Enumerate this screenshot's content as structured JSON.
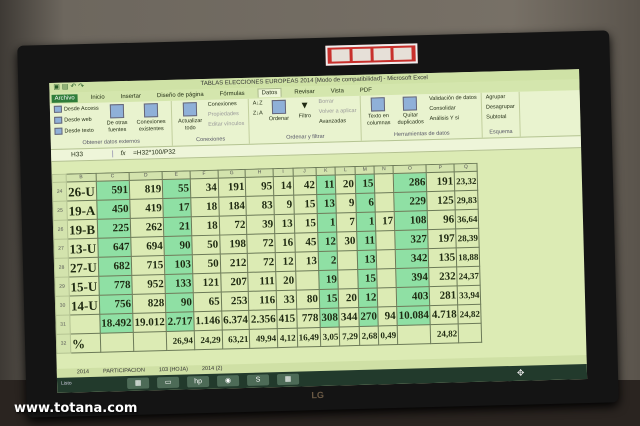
{
  "window": {
    "title": "TABLAS ELECCIONES EUROPEAS 2014  [Modo de compatibilidad] - Microsoft Excel"
  },
  "ribbon": {
    "tabs": [
      "Archivo",
      "Inicio",
      "Insertar",
      "Diseño de página",
      "Fórmulas",
      "Datos",
      "Revisar",
      "Vista",
      "PDF"
    ],
    "active_tab": "Datos",
    "external": {
      "access": "Desde Access",
      "web": "Desde web",
      "text": "Desde texto",
      "other": "De otras fuentes",
      "existing": "Conexiones existentes",
      "label": "Obtener datos externos"
    },
    "connections": {
      "refresh": "Actualizar todo",
      "conn": "Conexiones",
      "props": "Propiedades",
      "edit": "Editar vínculos",
      "label": "Conexiones"
    },
    "sort": {
      "sort": "Ordenar",
      "filter": "Filtro",
      "clear": "Borrar",
      "reapply": "Volver a aplicar",
      "advanced": "Avanzadas",
      "label": "Ordenar y filtrar"
    },
    "tools": {
      "text_cols": "Texto en columnas",
      "remove_dup": "Quitar duplicados",
      "validation": "Validación de datos",
      "consolidate": "Consolidar",
      "whatif": "Análisis Y si",
      "label": "Herramientas de datos"
    },
    "outline": {
      "group": "Agrupar",
      "ungroup": "Desagrupar",
      "subtotal": "Subtotal",
      "label": "Esquema"
    }
  },
  "formula_bar": {
    "name_box": "H33",
    "formula": "=H32*100/P32"
  },
  "sheet": {
    "columns": [
      "B",
      "C",
      "D",
      "E",
      "F",
      "G",
      "H",
      "I",
      "J",
      "K",
      "L",
      "M",
      "N",
      "O",
      "P",
      "Q"
    ],
    "green_columns": [
      "C",
      "E",
      "K",
      "M",
      "O"
    ],
    "rows": [
      {
        "num": "24",
        "cells": [
          "26-U",
          "591",
          "819",
          "55",
          "34",
          "191",
          "95",
          "14",
          "42",
          "11",
          "20",
          "15",
          "",
          "286",
          "191",
          "23,32"
        ]
      },
      {
        "num": "25",
        "cells": [
          "19-A",
          "450",
          "419",
          "17",
          "18",
          "184",
          "83",
          "9",
          "15",
          "13",
          "9",
          "6",
          "",
          "229",
          "125",
          "29,83"
        ]
      },
      {
        "num": "26",
        "cells": [
          "19-B",
          "225",
          "262",
          "21",
          "18",
          "72",
          "39",
          "13",
          "15",
          "1",
          "7",
          "1",
          "17",
          "108",
          "96",
          "36,64"
        ]
      },
      {
        "num": "27",
        "cells": [
          "13-U",
          "647",
          "694",
          "90",
          "50",
          "198",
          "72",
          "16",
          "45",
          "12",
          "30",
          "11",
          "",
          "327",
          "197",
          "28,39"
        ]
      },
      {
        "num": "28",
        "cells": [
          "27-U",
          "682",
          "715",
          "103",
          "50",
          "212",
          "72",
          "12",
          "13",
          "2",
          "",
          "13",
          "",
          "342",
          "135",
          "18,88"
        ]
      },
      {
        "num": "29",
        "cells": [
          "15-U",
          "778",
          "952",
          "133",
          "121",
          "207",
          "111",
          "20",
          "",
          "19",
          "",
          "15",
          "",
          "394",
          "232",
          "24,37"
        ]
      },
      {
        "num": "30",
        "cells": [
          "14-U",
          "756",
          "828",
          "90",
          "65",
          "253",
          "116",
          "33",
          "80",
          "15",
          "20",
          "12",
          "",
          "403",
          "281",
          "33,94"
        ]
      },
      {
        "num": "31",
        "cells": [
          "",
          "18.492",
          "19.012",
          "2.717",
          "1.146",
          "6.374",
          "2.356",
          "415",
          "778",
          "308",
          "344",
          "270",
          "94",
          "10.084",
          "4.718",
          "24,82"
        ]
      },
      {
        "num": "32",
        "cells": [
          "%",
          "",
          "",
          "26,94",
          "24,29",
          "63,21",
          "49,94",
          "4,12",
          "16,49",
          "3,05",
          "7,29",
          "2,68",
          "0,49",
          "",
          "24,82",
          ""
        ]
      }
    ]
  },
  "sheet_tabs": [
    "2014",
    "PARTICIPACION",
    "103 (HOJA)",
    "2014 (2)"
  ],
  "status": "Listo",
  "monitor_brand": "LG",
  "watermark": "www.totana.com"
}
